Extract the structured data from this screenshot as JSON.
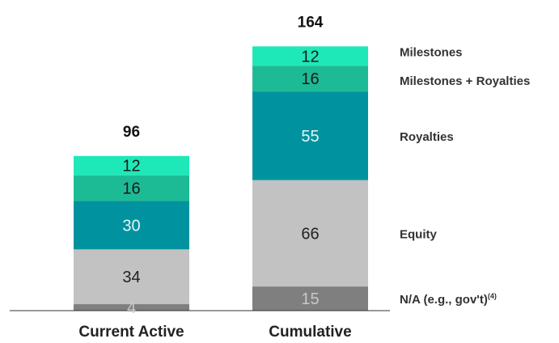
{
  "chart_data": {
    "type": "bar",
    "stacked": true,
    "categories": [
      "Current Active",
      "Cumulative"
    ],
    "totals": [
      "96",
      "164"
    ],
    "series": [
      {
        "name": "N/A (e.g., gov't)",
        "superscript": "(4)",
        "values": [
          4,
          15
        ],
        "color": "#7f7f7f",
        "text_color": "#c8c8c8"
      },
      {
        "name": "Equity",
        "values": [
          34,
          66
        ],
        "color": "#c2c2c2",
        "text_color": "#222222"
      },
      {
        "name": "Royalties",
        "values": [
          30,
          55
        ],
        "color": "#00939f",
        "text_color": "#e6f4f5"
      },
      {
        "name": "Milestones + Royalties",
        "values": [
          16,
          16
        ],
        "color": "#1dbb95",
        "text_color": "#1a1a1a"
      },
      {
        "name": "Milestones",
        "values": [
          12,
          12
        ],
        "color": "#1fe8b8",
        "text_color": "#1a1a1a"
      }
    ],
    "legend_position": "right",
    "grid": false
  }
}
